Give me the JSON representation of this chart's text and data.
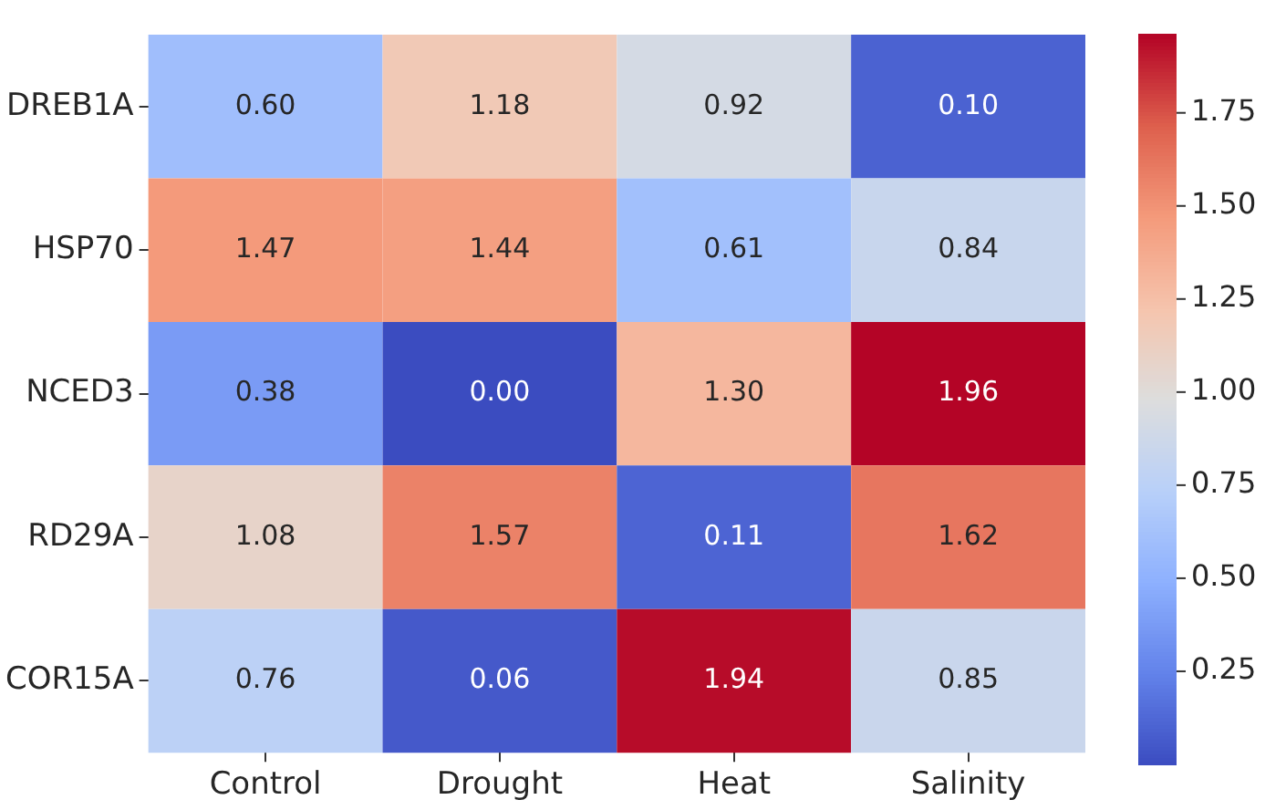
{
  "chart_data": {
    "type": "heatmap",
    "categories": [
      "Control",
      "Drought",
      "Heat",
      "Salinity"
    ],
    "y_categories": [
      "DREB1A",
      "HSP70",
      "NCED3",
      "RD29A",
      "COR15A"
    ],
    "cells": [
      [
        0.6,
        1.18,
        0.92,
        0.1
      ],
      [
        1.47,
        1.44,
        0.61,
        0.84
      ],
      [
        0.38,
        0.0,
        1.3,
        1.96
      ],
      [
        1.08,
        1.57,
        0.11,
        1.62
      ],
      [
        0.76,
        0.06,
        1.94,
        0.85
      ]
    ],
    "cell_labels": [
      [
        "0.60",
        "1.18",
        "0.92",
        "0.10"
      ],
      [
        "1.47",
        "1.44",
        "0.61",
        "0.84"
      ],
      [
        "0.38",
        "0.00",
        "1.30",
        "1.96"
      ],
      [
        "1.08",
        "1.57",
        "0.11",
        "1.62"
      ],
      [
        "0.76",
        "0.06",
        "1.94",
        "0.85"
      ]
    ],
    "data_labels": true,
    "clim": [
      0,
      1.96
    ],
    "cticks": [
      0.25,
      {
        "value": 0.5,
        "label": "0.50"
      },
      0.75,
      {
        "value": 1,
        "label": "1.00"
      },
      1.25,
      {
        "value": 1.5,
        "label": "1.50"
      },
      1.75
    ]
  }
}
